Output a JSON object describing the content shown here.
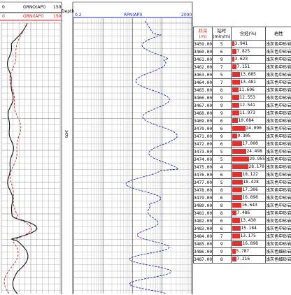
{
  "colors": {
    "red": "#d02020",
    "blue": "#1a2aa8",
    "black": "#111111",
    "grid": "#888888",
    "fine": "#b8b8b8"
  },
  "tracks": {
    "gr_black": {
      "label": "GRNO(API)",
      "min": "0",
      "max": "150"
    },
    "gr_red": {
      "label": "GRNI(API)",
      "min": "0",
      "max": "150"
    },
    "depth": {
      "label": "Depth",
      "marker": "3470"
    },
    "rpm": {
      "label": "RPN(API)",
      "min": "0.2",
      "max": "2000"
    }
  },
  "table": {
    "headers": [
      "井深\n(m)",
      "钻时\n(min/m)",
      "含烃(%)",
      "岩性"
    ],
    "rows": [
      {
        "depth": "3459.00",
        "rop": "5",
        "gas": 3.941,
        "gas_text": "3.941",
        "lith": "浅灰色中砂岩"
      },
      {
        "depth": "3460.00",
        "rop": "6",
        "gas": 7.825,
        "gas_text": "7.825",
        "lith": "浅灰色中砂岩"
      },
      {
        "depth": "3461.00",
        "rop": "9",
        "gas": 3.623,
        "gas_text": "3.623",
        "lith": "浅灰色中砂岩"
      },
      {
        "depth": "3462.00",
        "rop": "7",
        "gas": 7.151,
        "gas_text": "7.151",
        "lith": "浅灰色中砂岩"
      },
      {
        "depth": "3463.00",
        "rop": "5",
        "gas": 13.685,
        "gas_text": "13.685",
        "lith": "浅灰色中砂岩"
      },
      {
        "depth": "3464.00",
        "rop": "7",
        "gas": 13.481,
        "gas_text": "13.481",
        "lith": "浅灰色中砂岩"
      },
      {
        "depth": "3465.00",
        "rop": "8",
        "gas": 11.606,
        "gas_text": "11.606",
        "lith": "浅灰色中砂岩"
      },
      {
        "depth": "3466.00",
        "rop": "9",
        "gas": 12.553,
        "gas_text": "12.553",
        "lith": "浅灰色中砂岩"
      },
      {
        "depth": "3467.00",
        "rop": "9",
        "gas": 12.541,
        "gas_text": "12.541",
        "lith": "浅灰色中砂岩"
      },
      {
        "depth": "3468.00",
        "rop": "9",
        "gas": 11.973,
        "gas_text": "11.973",
        "lith": "浅灰色中砂岩"
      },
      {
        "depth": "3469.00",
        "rop": "6",
        "gas": 10.084,
        "gas_text": "10.084",
        "lith": "浅灰色中砂岩"
      },
      {
        "depth": "3470.00",
        "rop": "6",
        "gas": 24.09,
        "gas_text": "24.090",
        "lith": "浅灰色中砂岩"
      },
      {
        "depth": "3471.00",
        "rop": "9",
        "gas": 9.305,
        "gas_text": "9.305",
        "lith": "浅灰色中砂岩"
      },
      {
        "depth": "3472.00",
        "rop": "6",
        "gas": 17.0,
        "gas_text": "17.000",
        "lith": "浅灰色中砂岩"
      },
      {
        "depth": "3473.00",
        "rop": "5",
        "gas": 24.498,
        "gas_text": "24.498",
        "lith": "浅灰色中砂岩"
      },
      {
        "depth": "3474.00",
        "rop": "5",
        "gas": 29.955,
        "gas_text": "29.955",
        "lith": "浅灰色中砂岩"
      },
      {
        "depth": "3475.00",
        "rop": "4",
        "gas": 28.17,
        "gas_text": "28.170",
        "lith": "浅灰色中砂岩"
      },
      {
        "depth": "3476.00",
        "rop": "6",
        "gas": 18.122,
        "gas_text": "18.122",
        "lith": "浅灰色中砂岩"
      },
      {
        "depth": "3477.00",
        "rop": "5",
        "gas": 18.428,
        "gas_text": "18.428",
        "lith": "浅灰色中砂岩"
      },
      {
        "depth": "3478.00",
        "rop": "8",
        "gas": 17.306,
        "gas_text": "17.306",
        "lith": "浅灰色中砂岩"
      },
      {
        "depth": "3479.00",
        "rop": "6",
        "gas": 16.898,
        "gas_text": "16.898",
        "lith": "浅灰色中砂岩"
      },
      {
        "depth": "3480.00",
        "rop": "8",
        "gas": 16.643,
        "gas_text": "16.643",
        "lith": "浅灰色中砂岩"
      },
      {
        "depth": "3481.00",
        "rop": "8",
        "gas": 7.486,
        "gas_text": "7.486",
        "lith": "浅灰色中砂岩"
      },
      {
        "depth": "3482.00",
        "rop": "6",
        "gas": 13.43,
        "gas_text": "13.430",
        "lith": "浅灰色中砂岩"
      },
      {
        "depth": "3483.00",
        "rop": "6",
        "gas": 15.184,
        "gas_text": "15.184",
        "lith": "浅灰色中砂岩"
      },
      {
        "depth": "3484.00",
        "rop": "7",
        "gas": 13.175,
        "gas_text": "13.175",
        "lith": "浅灰色中砂岩"
      },
      {
        "depth": "3485.00",
        "rop": "9",
        "gas": 16.898,
        "gas_text": "16.898",
        "lith": "浅灰色中砂岩"
      },
      {
        "depth": "3486.00",
        "rop": "9",
        "gas": 5.787,
        "gas_text": "5.787",
        "lith": "浅灰色细砂岩"
      },
      {
        "depth": "3487.00",
        "rop": "8",
        "gas": 7.216,
        "gas_text": "7.216",
        "lith": "浅灰色细砂岩"
      }
    ]
  }
}
